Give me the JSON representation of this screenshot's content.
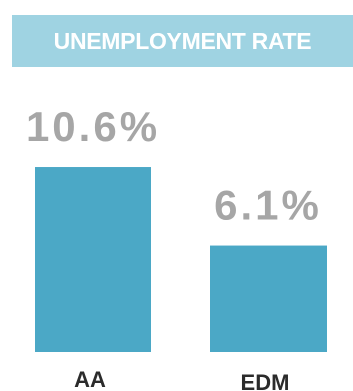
{
  "header": {
    "title": "UNEMPLOYMENT RATE"
  },
  "colors": {
    "banner": "#9fd3e2",
    "bar": "#4ba8c6",
    "value_label": "#a6a6a6",
    "category_label": "#2b2b2b"
  },
  "chart_data": {
    "type": "bar",
    "title": "UNEMPLOYMENT RATE",
    "categories": [
      "AA",
      "EDM"
    ],
    "values": [
      10.6,
      6.1
    ],
    "value_labels": [
      "10.6%",
      "6.1%"
    ],
    "unit": "%",
    "xlabel": "",
    "ylabel": "",
    "ylim": [
      0,
      12
    ],
    "grid": false,
    "legend": "none"
  }
}
